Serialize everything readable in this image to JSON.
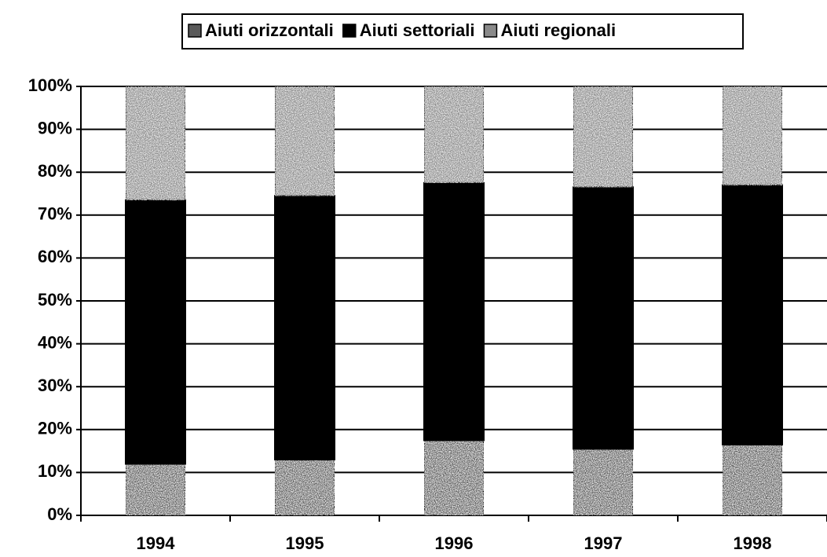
{
  "chart_data": {
    "type": "stacked_bar",
    "categories": [
      "1994",
      "1995",
      "1996",
      "1997",
      "1998"
    ],
    "series": [
      {
        "name": "Aiuti orizzontali",
        "color": "#5a5a5a",
        "values": [
          12,
          13,
          17.5,
          15.5,
          16.5
        ]
      },
      {
        "name": "Aiuti settoriali",
        "color": "#000000",
        "values": [
          61.5,
          61.5,
          60,
          61,
          60.5
        ]
      },
      {
        "name": "Aiuti regionali",
        "color": "#8a8a8a",
        "values": [
          26.5,
          25.5,
          22.5,
          23.5,
          23
        ]
      }
    ],
    "ylim": [
      0,
      100
    ],
    "yticks": [
      {
        "value": 0,
        "label": "0%"
      },
      {
        "value": 10,
        "label": "10%"
      },
      {
        "value": 20,
        "label": "20%"
      },
      {
        "value": 30,
        "label": "30%"
      },
      {
        "value": 40,
        "label": "40%"
      },
      {
        "value": 50,
        "label": "50%"
      },
      {
        "value": 60,
        "label": "60%"
      },
      {
        "value": 70,
        "label": "70%"
      },
      {
        "value": 80,
        "label": "80%"
      },
      {
        "value": 90,
        "label": "90%"
      },
      {
        "value": 100,
        "label": "100%"
      }
    ],
    "grid": true,
    "legend": "top"
  }
}
